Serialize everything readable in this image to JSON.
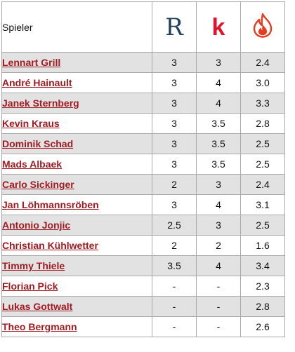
{
  "header": {
    "name_column": "Spieler",
    "source_1": {
      "letter": "R",
      "color": "#1f3f5f",
      "icon": "r-logo-icon"
    },
    "source_2": {
      "letter": "k",
      "color": "#e1142b",
      "icon": "k-logo-icon"
    },
    "source_3": {
      "color": "#e63b1e",
      "icon": "flame-logo-icon"
    }
  },
  "players": [
    {
      "name": "Lennart Grill",
      "r": "3",
      "k": "3",
      "f": "2.4"
    },
    {
      "name": "André Hainault",
      "r": "3",
      "k": "4",
      "f": "3.0"
    },
    {
      "name": "Janek Sternberg",
      "r": "3",
      "k": "4",
      "f": "3.3"
    },
    {
      "name": "Kevin Kraus",
      "r": "3",
      "k": "3.5",
      "f": "2.8"
    },
    {
      "name": "Dominik Schad",
      "r": "3",
      "k": "3.5",
      "f": "2.5"
    },
    {
      "name": "Mads Albaek",
      "r": "3",
      "k": "3.5",
      "f": "2.5"
    },
    {
      "name": "Carlo Sickinger",
      "r": "2",
      "k": "3",
      "f": "2.4"
    },
    {
      "name": "Jan Löhmannsröben",
      "r": "3",
      "k": "4",
      "f": "3.1"
    },
    {
      "name": "Antonio Jonjic",
      "r": "2.5",
      "k": "3",
      "f": "2.5"
    },
    {
      "name": "Christian Kühlwetter",
      "r": "2",
      "k": "2",
      "f": "1.6"
    },
    {
      "name": "Timmy Thiele",
      "r": "3.5",
      "k": "4",
      "f": "3.4"
    },
    {
      "name": "Florian Pick",
      "r": "-",
      "k": "-",
      "f": "2.3"
    },
    {
      "name": "Lukas Gottwalt",
      "r": "-",
      "k": "-",
      "f": "2.8"
    },
    {
      "name": "Theo Bergmann",
      "r": "-",
      "k": "-",
      "f": "2.6"
    }
  ]
}
